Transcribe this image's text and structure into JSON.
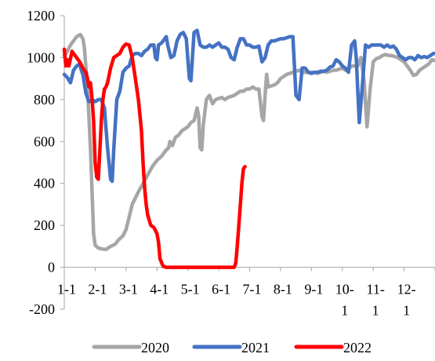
{
  "chart_data": {
    "type": "line",
    "ylim": [
      -200,
      1200
    ],
    "yticks": [
      -200,
      0,
      200,
      400,
      600,
      800,
      1000,
      1200
    ],
    "x_tick_labels": [
      "1-1",
      "2-1",
      "3-1",
      "4-1",
      "5-1",
      "6-1",
      "7-1",
      "8-1",
      "9-1",
      "10-\n1",
      "11-\n1",
      "12-\n1"
    ],
    "x_domain": [
      0,
      12
    ],
    "grid": false,
    "legend_position": "bottom",
    "series": [
      {
        "name": "2020",
        "color": "#a6a6a6",
        "points": [
          [
            0.0,
            1010
          ],
          [
            0.1,
            1030
          ],
          [
            0.2,
            1060
          ],
          [
            0.3,
            1080
          ],
          [
            0.4,
            1100
          ],
          [
            0.52,
            1110
          ],
          [
            0.6,
            1090
          ],
          [
            0.65,
            1050
          ],
          [
            0.75,
            860
          ],
          [
            0.85,
            560
          ],
          [
            0.95,
            160
          ],
          [
            1.0,
            105
          ],
          [
            1.1,
            92
          ],
          [
            1.2,
            88
          ],
          [
            1.35,
            85
          ],
          [
            1.5,
            100
          ],
          [
            1.65,
            110
          ],
          [
            1.75,
            130
          ],
          [
            1.9,
            150
          ],
          [
            2.0,
            180
          ],
          [
            2.1,
            240
          ],
          [
            2.2,
            300
          ],
          [
            2.3,
            330
          ],
          [
            2.4,
            360
          ],
          [
            2.55,
            400
          ],
          [
            2.7,
            440
          ],
          [
            2.85,
            480
          ],
          [
            3.0,
            510
          ],
          [
            3.15,
            530
          ],
          [
            3.3,
            560
          ],
          [
            3.38,
            570
          ],
          [
            3.42,
            600
          ],
          [
            3.5,
            580
          ],
          [
            3.6,
            620
          ],
          [
            3.7,
            630
          ],
          [
            3.8,
            650
          ],
          [
            3.9,
            660
          ],
          [
            4.0,
            670
          ],
          [
            4.1,
            690
          ],
          [
            4.2,
            700
          ],
          [
            4.3,
            760
          ],
          [
            4.35,
            720
          ],
          [
            4.4,
            570
          ],
          [
            4.45,
            560
          ],
          [
            4.5,
            680
          ],
          [
            4.6,
            800
          ],
          [
            4.7,
            820
          ],
          [
            4.8,
            780
          ],
          [
            4.9,
            800
          ],
          [
            5.0,
            805
          ],
          [
            5.1,
            810
          ],
          [
            5.2,
            800
          ],
          [
            5.3,
            810
          ],
          [
            5.4,
            815
          ],
          [
            5.5,
            820
          ],
          [
            5.6,
            830
          ],
          [
            5.7,
            840
          ],
          [
            5.8,
            840
          ],
          [
            5.9,
            850
          ],
          [
            6.0,
            850
          ],
          [
            6.1,
            860
          ],
          [
            6.2,
            850
          ],
          [
            6.3,
            850
          ],
          [
            6.4,
            720
          ],
          [
            6.45,
            700
          ],
          [
            6.5,
            820
          ],
          [
            6.55,
            920
          ],
          [
            6.6,
            860
          ],
          [
            6.7,
            865
          ],
          [
            6.8,
            870
          ],
          [
            6.9,
            880
          ],
          [
            7.0,
            900
          ],
          [
            7.1,
            910
          ],
          [
            7.2,
            920
          ],
          [
            7.3,
            925
          ],
          [
            7.4,
            930
          ],
          [
            7.5,
            935
          ],
          [
            7.6,
            940
          ],
          [
            7.7,
            930
          ],
          [
            7.8,
            930
          ],
          [
            7.9,
            930
          ],
          [
            8.0,
            930
          ],
          [
            8.1,
            930
          ],
          [
            8.2,
            925
          ],
          [
            8.3,
            930
          ],
          [
            8.4,
            935
          ],
          [
            8.5,
            930
          ],
          [
            8.6,
            935
          ],
          [
            8.7,
            940
          ],
          [
            8.8,
            940
          ],
          [
            8.9,
            945
          ],
          [
            9.0,
            950
          ],
          [
            9.1,
            940
          ],
          [
            9.2,
            945
          ],
          [
            9.3,
            960
          ],
          [
            9.4,
            960
          ],
          [
            9.5,
            960
          ],
          [
            9.6,
            1000
          ],
          [
            9.7,
            900
          ],
          [
            9.8,
            670
          ],
          [
            9.9,
            850
          ],
          [
            10.0,
            980
          ],
          [
            10.1,
            995
          ],
          [
            10.2,
            1000
          ],
          [
            10.3,
            1010
          ],
          [
            10.4,
            1015
          ],
          [
            10.5,
            1010
          ],
          [
            10.6,
            1010
          ],
          [
            10.7,
            1005
          ],
          [
            10.8,
            1000
          ],
          [
            10.9,
            990
          ],
          [
            11.0,
            980
          ],
          [
            11.1,
            960
          ],
          [
            11.2,
            940
          ],
          [
            11.3,
            915
          ],
          [
            11.4,
            920
          ],
          [
            11.5,
            940
          ],
          [
            11.6,
            950
          ],
          [
            11.7,
            960
          ],
          [
            11.8,
            970
          ],
          [
            11.9,
            990
          ],
          [
            12.0,
            985
          ]
        ]
      },
      {
        "name": "2021",
        "color": "#4472c4",
        "points": [
          [
            0.0,
            920
          ],
          [
            0.1,
            905
          ],
          [
            0.2,
            880
          ],
          [
            0.3,
            940
          ],
          [
            0.4,
            960
          ],
          [
            0.5,
            970
          ],
          [
            0.55,
            940
          ],
          [
            0.6,
            920
          ],
          [
            0.7,
            830
          ],
          [
            0.8,
            790
          ],
          [
            0.9,
            800
          ],
          [
            1.0,
            790
          ],
          [
            1.1,
            800
          ],
          [
            1.2,
            800
          ],
          [
            1.3,
            760
          ],
          [
            1.4,
            570
          ],
          [
            1.5,
            420
          ],
          [
            1.55,
            410
          ],
          [
            1.6,
            560
          ],
          [
            1.7,
            800
          ],
          [
            1.8,
            840
          ],
          [
            1.9,
            930
          ],
          [
            2.0,
            950
          ],
          [
            2.1,
            960
          ],
          [
            2.2,
            1010
          ],
          [
            2.3,
            1020
          ],
          [
            2.4,
            1020
          ],
          [
            2.5,
            1010
          ],
          [
            2.6,
            1030
          ],
          [
            2.7,
            1040
          ],
          [
            2.8,
            1060
          ],
          [
            2.9,
            1060
          ],
          [
            2.95,
            1000
          ],
          [
            3.0,
            990
          ],
          [
            3.05,
            1060
          ],
          [
            3.15,
            1070
          ],
          [
            3.25,
            1090
          ],
          [
            3.3,
            1100
          ],
          [
            3.35,
            1060
          ],
          [
            3.45,
            1000
          ],
          [
            3.55,
            1010
          ],
          [
            3.65,
            1080
          ],
          [
            3.75,
            1110
          ],
          [
            3.85,
            1120
          ],
          [
            3.95,
            1090
          ],
          [
            4.05,
            900
          ],
          [
            4.1,
            890
          ],
          [
            4.2,
            1120
          ],
          [
            4.3,
            1130
          ],
          [
            4.4,
            1060
          ],
          [
            4.5,
            1050
          ],
          [
            4.6,
            1050
          ],
          [
            4.7,
            1060
          ],
          [
            4.8,
            1050
          ],
          [
            4.9,
            1060
          ],
          [
            5.0,
            1070
          ],
          [
            5.1,
            1050
          ],
          [
            5.2,
            1050
          ],
          [
            5.3,
            1040
          ],
          [
            5.4,
            1000
          ],
          [
            5.5,
            990
          ],
          [
            5.6,
            1050
          ],
          [
            5.7,
            1090
          ],
          [
            5.8,
            1090
          ],
          [
            5.9,
            1060
          ],
          [
            6.0,
            1060
          ],
          [
            6.1,
            1050
          ],
          [
            6.2,
            1050
          ],
          [
            6.3,
            1055
          ],
          [
            6.4,
            980
          ],
          [
            6.5,
            1000
          ],
          [
            6.6,
            1060
          ],
          [
            6.7,
            1080
          ],
          [
            6.8,
            1080
          ],
          [
            6.9,
            1085
          ],
          [
            7.0,
            1090
          ],
          [
            7.1,
            1090
          ],
          [
            7.2,
            1095
          ],
          [
            7.3,
            1100
          ],
          [
            7.4,
            1100
          ],
          [
            7.5,
            820
          ],
          [
            7.6,
            800
          ],
          [
            7.7,
            950
          ],
          [
            7.8,
            950
          ],
          [
            7.9,
            930
          ],
          [
            8.0,
            925
          ],
          [
            8.1,
            930
          ],
          [
            8.2,
            930
          ],
          [
            8.3,
            935
          ],
          [
            8.4,
            935
          ],
          [
            8.5,
            940
          ],
          [
            8.6,
            955
          ],
          [
            8.7,
            960
          ],
          [
            8.8,
            990
          ],
          [
            8.9,
            980
          ],
          [
            9.0,
            960
          ],
          [
            9.1,
            950
          ],
          [
            9.2,
            930
          ],
          [
            9.3,
            1060
          ],
          [
            9.4,
            1080
          ],
          [
            9.45,
            1000
          ],
          [
            9.55,
            690
          ],
          [
            9.65,
            870
          ],
          [
            9.75,
            1060
          ],
          [
            9.85,
            1050
          ],
          [
            9.95,
            1060
          ],
          [
            10.05,
            1060
          ],
          [
            10.15,
            1060
          ],
          [
            10.25,
            1060
          ],
          [
            10.35,
            1050
          ],
          [
            10.45,
            1060
          ],
          [
            10.55,
            1050
          ],
          [
            10.65,
            1055
          ],
          [
            10.75,
            1040
          ],
          [
            10.85,
            1010
          ],
          [
            10.95,
            1000
          ],
          [
            11.05,
            990
          ],
          [
            11.15,
            1000
          ],
          [
            11.25,
            1000
          ],
          [
            11.35,
            990
          ],
          [
            11.45,
            1010
          ],
          [
            11.55,
            1000
          ],
          [
            11.65,
            1005
          ],
          [
            11.75,
            1000
          ],
          [
            11.85,
            1010
          ],
          [
            11.95,
            1020
          ],
          [
            12.0,
            1020
          ]
        ]
      },
      {
        "name": "2022",
        "color": "#ff0000",
        "points": [
          [
            0.0,
            1040
          ],
          [
            0.05,
            960
          ],
          [
            0.1,
            990
          ],
          [
            0.15,
            960
          ],
          [
            0.25,
            1030
          ],
          [
            0.35,
            1010
          ],
          [
            0.5,
            980
          ],
          [
            0.6,
            950
          ],
          [
            0.7,
            930
          ],
          [
            0.75,
            900
          ],
          [
            0.8,
            860
          ],
          [
            0.85,
            880
          ],
          [
            0.9,
            800
          ],
          [
            0.95,
            700
          ],
          [
            1.0,
            500
          ],
          [
            1.05,
            430
          ],
          [
            1.1,
            420
          ],
          [
            1.15,
            550
          ],
          [
            1.2,
            700
          ],
          [
            1.25,
            800
          ],
          [
            1.3,
            850
          ],
          [
            1.35,
            860
          ],
          [
            1.4,
            880
          ],
          [
            1.5,
            950
          ],
          [
            1.6,
            1000
          ],
          [
            1.7,
            1010
          ],
          [
            1.8,
            1020
          ],
          [
            1.9,
            1050
          ],
          [
            2.0,
            1065
          ],
          [
            2.1,
            1060
          ],
          [
            2.2,
            1000
          ],
          [
            2.3,
            900
          ],
          [
            2.4,
            800
          ],
          [
            2.5,
            650
          ],
          [
            2.55,
            500
          ],
          [
            2.6,
            380
          ],
          [
            2.65,
            300
          ],
          [
            2.7,
            250
          ],
          [
            2.8,
            200
          ],
          [
            2.9,
            190
          ],
          [
            3.0,
            160
          ],
          [
            3.05,
            120
          ],
          [
            3.1,
            40
          ],
          [
            3.2,
            5
          ],
          [
            3.3,
            0
          ],
          [
            3.5,
            0
          ],
          [
            4.0,
            0
          ],
          [
            4.5,
            0
          ],
          [
            5.0,
            0
          ],
          [
            5.4,
            0
          ],
          [
            5.5,
            0
          ],
          [
            5.55,
            20
          ],
          [
            5.6,
            100
          ],
          [
            5.65,
            200
          ],
          [
            5.7,
            300
          ],
          [
            5.75,
            400
          ],
          [
            5.8,
            470
          ],
          [
            5.85,
            480
          ]
        ]
      }
    ]
  }
}
